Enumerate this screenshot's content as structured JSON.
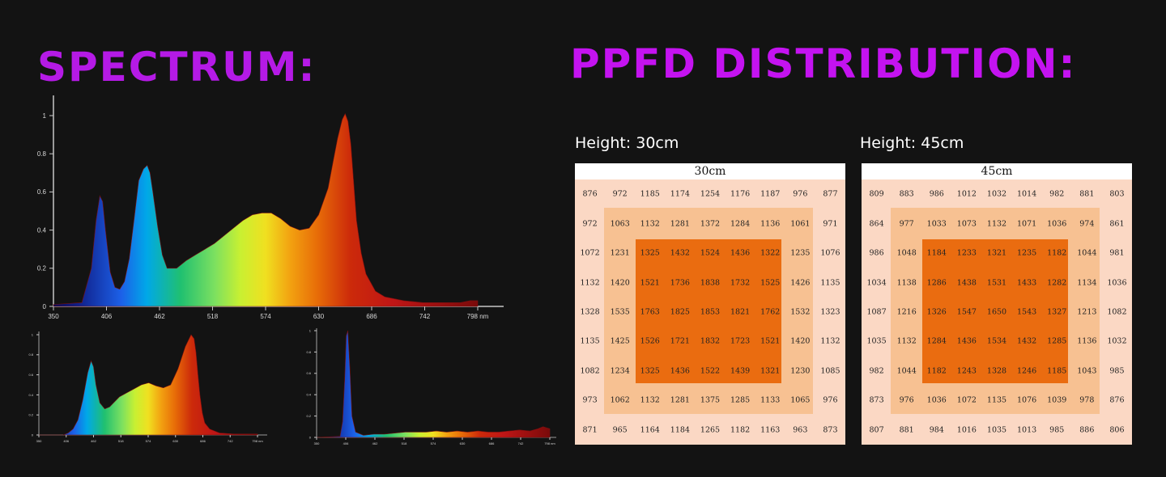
{
  "spectrum_title": "SPECTRUM:",
  "ppfd_title": "PPFD DISTRIBUTION:",
  "colors": {
    "spectrum_title": "#b51ae6",
    "ppfd_title": "#c413f0",
    "grid_outer": "#fbd8c4",
    "grid_mid": "#f7c192",
    "grid_center": "#ea6c10"
  },
  "chart_data": [
    {
      "type": "area",
      "x_ticks": [
        "350",
        "406",
        "462",
        "518",
        "574",
        "630",
        "686",
        "742",
        "798 nm"
      ],
      "y_ticks": [
        "0",
        "0.2",
        "0.4",
        "0.6",
        "0.8",
        "1"
      ],
      "xlim": [
        350,
        798
      ],
      "ylim": [
        0,
        1
      ],
      "x": [
        350,
        380,
        390,
        395,
        399,
        402,
        405,
        410,
        415,
        420,
        425,
        430,
        435,
        440,
        445,
        449,
        452,
        455,
        460,
        465,
        470,
        480,
        490,
        500,
        510,
        520,
        530,
        540,
        550,
        560,
        570,
        580,
        590,
        600,
        610,
        620,
        630,
        640,
        645,
        650,
        655,
        658,
        661,
        664,
        667,
        670,
        675,
        680,
        690,
        700,
        720,
        740,
        760,
        780,
        790,
        798
      ],
      "values": [
        0.01,
        0.02,
        0.2,
        0.45,
        0.58,
        0.55,
        0.4,
        0.18,
        0.1,
        0.09,
        0.13,
        0.25,
        0.45,
        0.66,
        0.72,
        0.74,
        0.7,
        0.6,
        0.42,
        0.27,
        0.2,
        0.2,
        0.24,
        0.27,
        0.3,
        0.33,
        0.37,
        0.41,
        0.45,
        0.48,
        0.49,
        0.49,
        0.46,
        0.42,
        0.4,
        0.41,
        0.48,
        0.62,
        0.75,
        0.88,
        0.98,
        1.01,
        0.97,
        0.85,
        0.65,
        0.45,
        0.28,
        0.17,
        0.08,
        0.05,
        0.03,
        0.02,
        0.02,
        0.02,
        0.03,
        0.03
      ]
    },
    {
      "type": "area",
      "x_ticks": [
        "350",
        "406",
        "462",
        "518",
        "574",
        "630",
        "686",
        "742",
        "798 nm"
      ],
      "y_ticks": [
        "0",
        "0.2",
        "0.4",
        "0.6",
        "0.8",
        "1"
      ],
      "xlim": [
        350,
        798
      ],
      "ylim": [
        0,
        1
      ],
      "x": [
        350,
        400,
        410,
        420,
        430,
        440,
        450,
        457,
        462,
        467,
        475,
        485,
        495,
        505,
        515,
        530,
        545,
        560,
        575,
        590,
        605,
        620,
        635,
        650,
        662,
        668,
        672,
        676,
        680,
        685,
        690,
        700,
        720,
        750,
        798
      ],
      "values": [
        0,
        0,
        0.02,
        0.06,
        0.15,
        0.35,
        0.62,
        0.74,
        0.68,
        0.5,
        0.32,
        0.26,
        0.28,
        0.33,
        0.38,
        0.42,
        0.46,
        0.5,
        0.52,
        0.49,
        0.47,
        0.5,
        0.66,
        0.88,
        1.0,
        0.96,
        0.82,
        0.6,
        0.4,
        0.22,
        0.12,
        0.06,
        0.02,
        0.01,
        0.01
      ]
    },
    {
      "type": "area",
      "x_ticks": [
        "350",
        "406",
        "462",
        "518",
        "574",
        "630",
        "686",
        "742",
        "798 nm"
      ],
      "y_ticks": [
        "0",
        "0.2",
        "0.4",
        "0.6",
        "0.8",
        "1"
      ],
      "xlim": [
        350,
        798
      ],
      "ylim": [
        0,
        1
      ],
      "x": [
        350,
        395,
        400,
        404,
        407,
        410,
        414,
        418,
        425,
        440,
        460,
        480,
        500,
        520,
        540,
        560,
        580,
        600,
        620,
        640,
        660,
        680,
        700,
        720,
        740,
        760,
        775,
        785,
        798
      ],
      "values": [
        0,
        0.01,
        0.15,
        0.55,
        0.95,
        1.0,
        0.65,
        0.2,
        0.05,
        0.02,
        0.03,
        0.03,
        0.04,
        0.05,
        0.05,
        0.05,
        0.06,
        0.05,
        0.06,
        0.05,
        0.06,
        0.05,
        0.05,
        0.06,
        0.07,
        0.06,
        0.08,
        0.1,
        0.08
      ]
    },
    {
      "type": "heatmap",
      "header": "30cm",
      "height_label": "Height: 30cm",
      "rows": [
        [
          "876",
          "972",
          "1185",
          "1174",
          "1254",
          "1176",
          "1187",
          "976",
          "877"
        ],
        [
          "972",
          "1063",
          "1132",
          "1281",
          "1372",
          "1284",
          "1136",
          "1061",
          "971"
        ],
        [
          "1072",
          "1231",
          "1325",
          "1432",
          "1524",
          "1436",
          "1322",
          "1235",
          "1076"
        ],
        [
          "1132",
          "1420",
          "1521",
          "1736",
          "1838",
          "1732",
          "1525",
          "1426",
          "1135"
        ],
        [
          "1328",
          "1535",
          "1763",
          "1825",
          "1853",
          "1821",
          "1762",
          "1532",
          "1323"
        ],
        [
          "1135",
          "1425",
          "1526",
          "1721",
          "1832",
          "1723",
          "1521",
          "1420",
          "1132"
        ],
        [
          "1082",
          "1234",
          "1325",
          "1436",
          "1522",
          "1439",
          "1321",
          "1230",
          "1085"
        ],
        [
          "973",
          "1062",
          "1132",
          "1281",
          "1375",
          "1285",
          "1133",
          "1065",
          "976"
        ],
        [
          "871",
          "965",
          "1164",
          "1184",
          "1265",
          "1182",
          "1163",
          "963",
          "873"
        ]
      ]
    },
    {
      "type": "heatmap",
      "header": "45cm",
      "height_label": "Height: 45cm",
      "rows": [
        [
          "809",
          "883",
          "986",
          "1012",
          "1032",
          "1014",
          "982",
          "881",
          "803"
        ],
        [
          "864",
          "977",
          "1033",
          "1073",
          "1132",
          "1071",
          "1036",
          "974",
          "861"
        ],
        [
          "986",
          "1048",
          "1184",
          "1233",
          "1321",
          "1235",
          "1182",
          "1044",
          "981"
        ],
        [
          "1034",
          "1138",
          "1286",
          "1438",
          "1531",
          "1433",
          "1282",
          "1134",
          "1036"
        ],
        [
          "1087",
          "1216",
          "1326",
          "1547",
          "1650",
          "1543",
          "1327",
          "1213",
          "1082"
        ],
        [
          "1035",
          "1132",
          "1284",
          "1436",
          "1534",
          "1432",
          "1285",
          "1136",
          "1032"
        ],
        [
          "982",
          "1044",
          "1182",
          "1243",
          "1328",
          "1246",
          "1185",
          "1043",
          "985"
        ],
        [
          "873",
          "976",
          "1036",
          "1072",
          "1135",
          "1076",
          "1039",
          "978",
          "876"
        ],
        [
          "807",
          "881",
          "984",
          "1016",
          "1035",
          "1013",
          "985",
          "886",
          "806"
        ]
      ]
    }
  ]
}
